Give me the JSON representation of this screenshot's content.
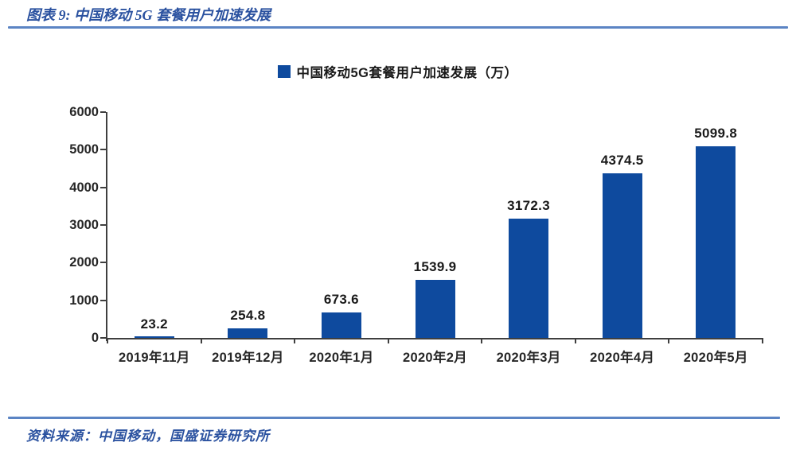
{
  "header": {
    "title": "图表 9:  中国移动 5G 套餐用户加速发展"
  },
  "legend": {
    "label": "中国移动5G套餐用户加速发展（万）"
  },
  "chart_data": {
    "type": "bar",
    "title": "中国移动5G套餐用户加速发展（万）",
    "categories": [
      "2019年11月",
      "2019年12月",
      "2020年1月",
      "2020年2月",
      "2020年3月",
      "2020年4月",
      "2020年5月"
    ],
    "values": [
      23.2,
      254.8,
      673.6,
      1539.9,
      3172.3,
      4374.5,
      5099.8
    ],
    "unit": "万",
    "xlabel": "",
    "ylabel": "",
    "ylim": [
      0,
      6000
    ],
    "yticks": [
      0,
      1000,
      2000,
      3000,
      4000,
      5000,
      6000
    ],
    "grid": false,
    "legend_position": "top-center",
    "data_labels_visible": true
  },
  "footer": {
    "source": "资料来源：中国移动，国盛证券研究所"
  },
  "colors": {
    "bar_blue": "#0e4a9e",
    "title_blue": "#2b52a0",
    "rule_blue": "#5b84c4",
    "axis_gray": "#3f3f3f",
    "text_black": "#1a1a1a"
  }
}
